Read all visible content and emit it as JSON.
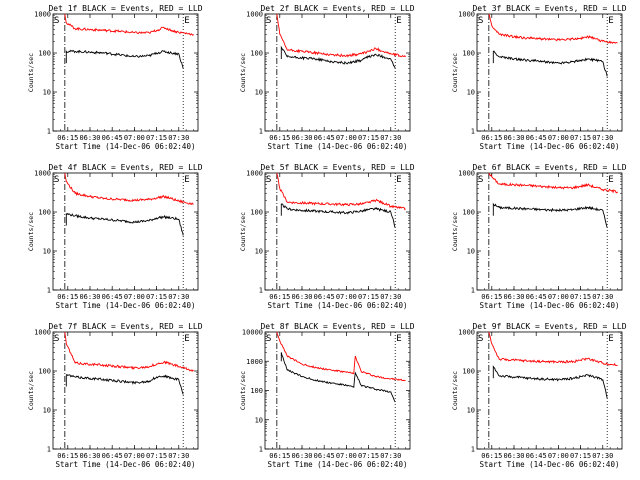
{
  "colors": {
    "events": "#000000",
    "lld": "#ff0000",
    "background": "#ffffff"
  },
  "chart_data": [
    {
      "type": "line",
      "title": "Det 1f BLACK = Events, RED = LLD",
      "xlabel": "Start Time (14-Dec-06 06:02:40)",
      "ylabel": "Counts/sec",
      "xticks": [
        "06:15",
        "06:30",
        "06:45",
        "07:00",
        "07:15",
        "07:30"
      ],
      "yticks": [
        "1",
        "10",
        "100",
        "1000"
      ],
      "yscale": "log",
      "ylim": [
        1,
        1000
      ],
      "markers": [
        "S",
        "E"
      ],
      "series": [
        {
          "name": "Events",
          "color": "#000000",
          "x": [
            "06:13",
            "06:14",
            "06:20",
            "06:30",
            "06:40",
            "06:50",
            "07:00",
            "07:10",
            "07:15",
            "07:20",
            "07:25",
            "07:30",
            "07:33"
          ],
          "values": [
            null,
            110,
            110,
            105,
            100,
            90,
            80,
            85,
            100,
            110,
            100,
            95,
            40
          ]
        },
        {
          "name": "LLD",
          "color": "#ff0000",
          "x": [
            "06:13",
            "06:14",
            "06:20",
            "06:30",
            "06:40",
            "06:50",
            "07:00",
            "07:10",
            "07:15",
            "07:20",
            "07:25",
            "07:30",
            "07:40"
          ],
          "values": [
            1000,
            600,
            420,
            400,
            380,
            360,
            330,
            330,
            380,
            450,
            380,
            340,
            300
          ]
        }
      ]
    },
    {
      "type": "line",
      "title": "Det 2f BLACK = Events, RED = LLD",
      "xlabel": "Start Time (14-Dec-06 06:02:40)",
      "ylabel": "Counts/sec",
      "xticks": [
        "06:15",
        "06:30",
        "06:45",
        "07:00",
        "07:15",
        "07:30"
      ],
      "yticks": [
        "1",
        "10",
        "100",
        "1000"
      ],
      "yscale": "log",
      "ylim": [
        1,
        1000
      ],
      "markers": [
        "S",
        "E"
      ],
      "series": [
        {
          "name": "Events",
          "color": "#000000",
          "x": [
            "06:15",
            "06:16",
            "06:20",
            "06:30",
            "06:40",
            "06:50",
            "07:00",
            "07:10",
            "07:15",
            "07:20",
            "07:25",
            "07:30",
            "07:33"
          ],
          "values": [
            null,
            140,
            80,
            75,
            70,
            60,
            55,
            65,
            80,
            90,
            80,
            70,
            40
          ]
        },
        {
          "name": "LLD",
          "color": "#ff0000",
          "x": [
            "06:13",
            "06:15",
            "06:20",
            "06:30",
            "06:40",
            "06:50",
            "07:00",
            "07:10",
            "07:15",
            "07:20",
            "07:25",
            "07:30",
            "07:40"
          ],
          "values": [
            1000,
            300,
            120,
            110,
            100,
            90,
            85,
            95,
            110,
            130,
            110,
            95,
            80
          ]
        }
      ]
    },
    {
      "type": "line",
      "title": "Det 3f BLACK = Events, RED = LLD",
      "xlabel": "Start Time (14-Dec-06 06:02:40)",
      "ylabel": "Counts/sec",
      "xticks": [
        "06:15",
        "06:30",
        "06:45",
        "07:00",
        "07:15",
        "07:30"
      ],
      "yticks": [
        "1",
        "10",
        "100",
        "1000"
      ],
      "yscale": "log",
      "ylim": [
        1,
        1000
      ],
      "markers": [
        "S",
        "E"
      ],
      "series": [
        {
          "name": "Events",
          "color": "#000000",
          "x": [
            "06:15",
            "06:16",
            "06:20",
            "06:30",
            "06:40",
            "06:50",
            "07:00",
            "07:10",
            "07:15",
            "07:20",
            "07:25",
            "07:30",
            "07:33"
          ],
          "values": [
            null,
            110,
            80,
            70,
            65,
            60,
            55,
            60,
            65,
            70,
            65,
            60,
            25
          ]
        },
        {
          "name": "LLD",
          "color": "#ff0000",
          "x": [
            "06:13",
            "06:15",
            "06:20",
            "06:30",
            "06:40",
            "06:50",
            "07:00",
            "07:10",
            "07:15",
            "07:20",
            "07:25",
            "07:30",
            "07:40"
          ],
          "values": [
            1000,
            500,
            300,
            260,
            240,
            230,
            220,
            230,
            240,
            260,
            230,
            200,
            180
          ]
        }
      ]
    },
    {
      "type": "line",
      "title": "Det 4f BLACK = Events, RED = LLD",
      "xlabel": "Start Time (14-Dec-06 06:02:40)",
      "ylabel": "Counts/sec",
      "xticks": [
        "06:15",
        "06:30",
        "06:45",
        "07:00",
        "07:15",
        "07:30"
      ],
      "yticks": [
        "1",
        "10",
        "100",
        "1000"
      ],
      "yscale": "log",
      "ylim": [
        1,
        1000
      ],
      "markers": [
        "S",
        "E"
      ],
      "series": [
        {
          "name": "Events",
          "color": "#000000",
          "x": [
            "06:13",
            "06:14",
            "06:20",
            "06:30",
            "06:40",
            "06:50",
            "07:00",
            "07:10",
            "07:15",
            "07:20",
            "07:25",
            "07:30",
            "07:33"
          ],
          "values": [
            null,
            90,
            80,
            70,
            65,
            60,
            55,
            60,
            70,
            75,
            70,
            65,
            25
          ]
        },
        {
          "name": "LLD",
          "color": "#ff0000",
          "x": [
            "06:13",
            "06:14",
            "06:20",
            "06:30",
            "06:40",
            "06:50",
            "07:00",
            "07:10",
            "07:15",
            "07:20",
            "07:25",
            "07:30",
            "07:40"
          ],
          "values": [
            1000,
            600,
            300,
            250,
            220,
            210,
            200,
            210,
            230,
            250,
            220,
            190,
            160
          ]
        }
      ]
    },
    {
      "type": "line",
      "title": "Det 5f BLACK = Events, RED = LLD",
      "xlabel": "Start Time (14-Dec-06 06:02:40)",
      "ylabel": "Counts/sec",
      "xticks": [
        "06:15",
        "06:30",
        "06:45",
        "07:00",
        "07:15",
        "07:30"
      ],
      "yticks": [
        "1",
        "10",
        "100",
        "1000"
      ],
      "yscale": "log",
      "ylim": [
        1,
        1000
      ],
      "markers": [
        "S",
        "E"
      ],
      "series": [
        {
          "name": "Events",
          "color": "#000000",
          "x": [
            "06:15",
            "06:16",
            "06:20",
            "06:30",
            "06:40",
            "06:50",
            "07:00",
            "07:10",
            "07:15",
            "07:20",
            "07:25",
            "07:30",
            "07:33"
          ],
          "values": [
            null,
            160,
            120,
            110,
            105,
            100,
            95,
            105,
            115,
            120,
            110,
            100,
            40
          ]
        },
        {
          "name": "LLD",
          "color": "#ff0000",
          "x": [
            "06:13",
            "06:15",
            "06:20",
            "06:30",
            "06:40",
            "06:50",
            "07:00",
            "07:10",
            "07:15",
            "07:20",
            "07:25",
            "07:30",
            "07:40"
          ],
          "values": [
            1000,
            400,
            180,
            170,
            165,
            160,
            155,
            160,
            175,
            200,
            170,
            140,
            120
          ]
        }
      ]
    },
    {
      "type": "line",
      "title": "Det 6f BLACK = Events, RED = LLD",
      "xlabel": "Start Time (14-Dec-06 06:02:40)",
      "ylabel": "Counts/sec",
      "xticks": [
        "06:15",
        "06:30",
        "06:45",
        "07:00",
        "07:15",
        "07:30"
      ],
      "yticks": [
        "1",
        "10",
        "100",
        "1000"
      ],
      "yscale": "log",
      "ylim": [
        1,
        1000
      ],
      "markers": [
        "S",
        "E"
      ],
      "series": [
        {
          "name": "Events",
          "color": "#000000",
          "x": [
            "06:15",
            "06:16",
            "06:20",
            "06:30",
            "06:40",
            "06:50",
            "07:00",
            "07:10",
            "07:15",
            "07:20",
            "07:25",
            "07:30",
            "07:33"
          ],
          "values": [
            null,
            160,
            130,
            125,
            120,
            115,
            110,
            115,
            125,
            130,
            120,
            110,
            40
          ]
        },
        {
          "name": "LLD",
          "color": "#ff0000",
          "x": [
            "06:13",
            "06:15",
            "06:20",
            "06:30",
            "06:40",
            "06:50",
            "07:00",
            "07:10",
            "07:15",
            "07:20",
            "07:25",
            "07:30",
            "07:40"
          ],
          "values": [
            1000,
            800,
            520,
            500,
            480,
            450,
            420,
            420,
            460,
            500,
            430,
            380,
            330
          ]
        }
      ]
    },
    {
      "type": "line",
      "title": "Det 7f BLACK = Events, RED = LLD",
      "xlabel": "Start Time (14-Dec-06 06:02:40)",
      "ylabel": "Counts/sec",
      "xticks": [
        "06:15",
        "06:30",
        "06:45",
        "07:00",
        "07:15",
        "07:30"
      ],
      "yticks": [
        "1",
        "10",
        "100",
        "1000"
      ],
      "yscale": "log",
      "ylim": [
        1,
        1000
      ],
      "markers": [
        "S",
        "E"
      ],
      "series": [
        {
          "name": "Events",
          "color": "#000000",
          "x": [
            "06:13",
            "06:14",
            "06:20",
            "06:30",
            "06:40",
            "06:50",
            "07:00",
            "07:10",
            "07:15",
            "07:20",
            "07:25",
            "07:30",
            "07:33"
          ],
          "values": [
            null,
            80,
            70,
            65,
            60,
            55,
            50,
            55,
            70,
            75,
            65,
            60,
            25
          ]
        },
        {
          "name": "LLD",
          "color": "#ff0000",
          "x": [
            "06:13",
            "06:14",
            "06:20",
            "06:30",
            "06:40",
            "06:50",
            "07:00",
            "07:10",
            "07:15",
            "07:20",
            "07:25",
            "07:30",
            "07:40"
          ],
          "values": [
            1000,
            500,
            160,
            150,
            140,
            130,
            120,
            130,
            150,
            170,
            150,
            130,
            100
          ]
        }
      ]
    },
    {
      "type": "line",
      "title": "Det 8f BLACK = Events, RED = LLD",
      "xlabel": "Start Time (14-Dec-06 06:02:40)",
      "ylabel": "Counts/sec",
      "xticks": [
        "06:15",
        "06:30",
        "06:45",
        "07:00",
        "07:15",
        "07:30"
      ],
      "yticks": [
        "1",
        "10",
        "100",
        "1000",
        "10000"
      ],
      "yscale": "log",
      "ylim": [
        1,
        10000
      ],
      "markers": [
        "S",
        "E"
      ],
      "series": [
        {
          "name": "Events",
          "color": "#000000",
          "x": [
            "06:15",
            "06:16",
            "06:20",
            "06:30",
            "06:40",
            "06:50",
            "07:00",
            "07:05",
            "07:06",
            "07:10",
            "07:20",
            "07:30",
            "07:33"
          ],
          "values": [
            null,
            2000,
            500,
            300,
            220,
            180,
            150,
            130,
            400,
            150,
            110,
            90,
            40
          ]
        },
        {
          "name": "LLD",
          "color": "#ff0000",
          "x": [
            "06:13",
            "06:15",
            "06:20",
            "06:30",
            "06:40",
            "06:50",
            "07:00",
            "07:05",
            "07:06",
            "07:10",
            "07:20",
            "07:30",
            "07:40"
          ],
          "values": [
            10000,
            5000,
            1500,
            800,
            600,
            500,
            420,
            380,
            1500,
            450,
            300,
            250,
            220
          ]
        }
      ]
    },
    {
      "type": "line",
      "title": "Det 9f BLACK = Events, RED = LLD",
      "xlabel": "Start Time (14-Dec-06 06:02:40)",
      "ylabel": "Counts/sec",
      "xticks": [
        "06:15",
        "06:30",
        "06:45",
        "07:00",
        "07:15",
        "07:30"
      ],
      "yticks": [
        "1",
        "10",
        "100",
        "1000"
      ],
      "yscale": "log",
      "ylim": [
        1,
        1000
      ],
      "markers": [
        "S",
        "E"
      ],
      "series": [
        {
          "name": "Events",
          "color": "#000000",
          "x": [
            "06:15",
            "06:16",
            "06:20",
            "06:30",
            "06:40",
            "06:50",
            "07:00",
            "07:10",
            "07:15",
            "07:20",
            "07:25",
            "07:30",
            "07:33"
          ],
          "values": [
            null,
            130,
            75,
            70,
            65,
            62,
            60,
            65,
            72,
            78,
            70,
            60,
            20
          ]
        },
        {
          "name": "LLD",
          "color": "#ff0000",
          "x": [
            "06:13",
            "06:15",
            "06:20",
            "06:30",
            "06:40",
            "06:50",
            "07:00",
            "07:10",
            "07:15",
            "07:20",
            "07:25",
            "07:30",
            "07:40"
          ],
          "values": [
            1000,
            500,
            200,
            190,
            180,
            175,
            170,
            175,
            190,
            210,
            180,
            160,
            140
          ]
        }
      ]
    }
  ]
}
